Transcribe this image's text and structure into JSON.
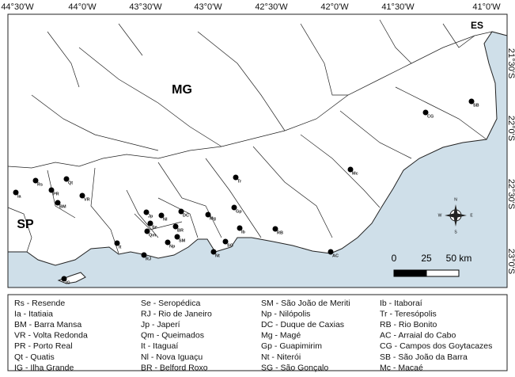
{
  "map": {
    "top_axis_labels": [
      "44°30'W",
      "44°0'W",
      "43°30'W",
      "43°0'W",
      "42°30'W",
      "42°0'W",
      "41°30'W",
      "41°0'W"
    ],
    "right_axis_labels": [
      "21°30'S",
      "22°0'S",
      "22°30'S",
      "23°0'S"
    ],
    "region_labels": [
      "MG",
      "SP",
      "ES"
    ],
    "sites": [
      "Rs",
      "Ia",
      "Qt",
      "PR",
      "VR",
      "BM",
      "Jp",
      "Nl",
      "DC",
      "Mg",
      "Se",
      "Qm",
      "BR",
      "SM",
      "Np",
      "It",
      "RJ",
      "Nt",
      "SG",
      "Ib",
      "RB",
      "Gp",
      "Tr",
      "Mc",
      "CG",
      "SB",
      "AC",
      "IG"
    ],
    "scale": {
      "ticks": [
        0,
        25,
        {
          "value": 50,
          "label": "50 km"
        }
      ]
    },
    "compass": [
      "N",
      "S",
      "E",
      "W"
    ],
    "legend": [
      [
        "Rs - Resende",
        "Ia - Itatiaia",
        "BM - Barra Mansa",
        "VR - Volta Redonda",
        "PR - Porto Real",
        "Qt - Quatis",
        "IG - Ilha Grande"
      ],
      [
        "Se - Seropédica",
        "RJ - Rio de Janeiro",
        "Jp - Japerí",
        "Qm - Queimados",
        "It - Itaguaí",
        "Nl - Nova Iguaçu",
        "BR - Belford Roxo"
      ],
      [
        "SM - São João de Meriti",
        "Np - Nilópolis",
        "DC - Duque de Caxias",
        "Mg - Magé",
        "Gp - Guapimirim",
        "Nt - Niterói",
        "SG - São Gonçalo"
      ],
      [
        "Ib - Itaboraí",
        "Tr - Teresópolis",
        "RB - Rio Bonito",
        "AC - Arraial do Cabo",
        "CG - Campos dos Goytacazes",
        "SB - São João da Barra",
        "Mc - Macaé"
      ]
    ]
  }
}
